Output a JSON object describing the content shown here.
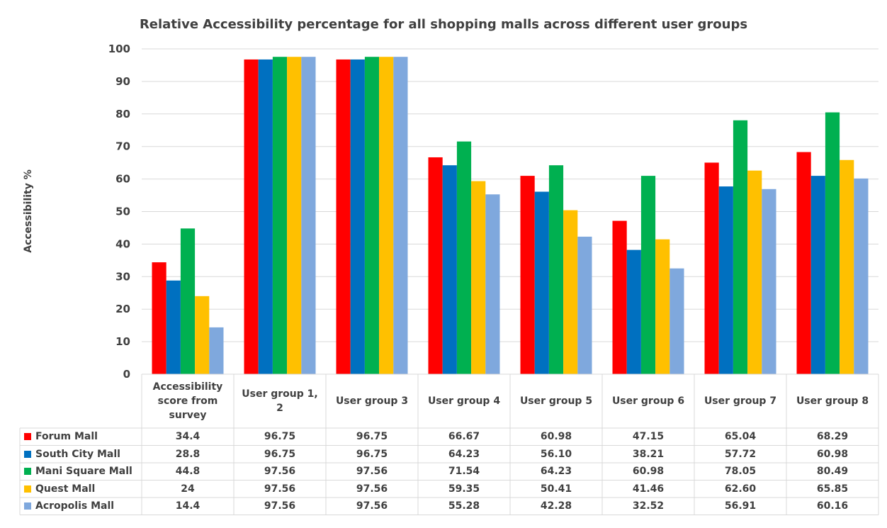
{
  "chart_data": {
    "type": "bar",
    "title": "Relative Accessibility percentage for all shopping malls across different user groups",
    "xlabel": "",
    "ylabel": "Accessibility %",
    "ylim": [
      0,
      100
    ],
    "yticks": [
      "0",
      "10",
      "20",
      "30",
      "40",
      "50",
      "60",
      "70",
      "80",
      "90",
      "100"
    ],
    "grid": true,
    "legend": "data-table",
    "categories": [
      "Accessibility score from survey",
      "User group 1, 2",
      "User group 3",
      "User group 4",
      "User group 5",
      "User group 6",
      "User group 7",
      "User group 8"
    ],
    "series": [
      {
        "name": "Forum Mall",
        "color": "#FF0000",
        "values": [
          34.4,
          96.75,
          96.75,
          66.67,
          60.98,
          47.15,
          65.04,
          68.29
        ],
        "labels": [
          "34.4",
          "96.75",
          "96.75",
          "66.67",
          "60.98",
          "47.15",
          "65.04",
          "68.29"
        ]
      },
      {
        "name": "South City Mall",
        "color": "#0070C0",
        "values": [
          28.8,
          96.75,
          96.75,
          64.23,
          56.1,
          38.21,
          57.72,
          60.98
        ],
        "labels": [
          "28.8",
          "96.75",
          "96.75",
          "64.23",
          "56.10",
          "38.21",
          "57.72",
          "60.98"
        ]
      },
      {
        "name": "Mani Square Mall",
        "color": "#00B050",
        "values": [
          44.8,
          97.56,
          97.56,
          71.54,
          64.23,
          60.98,
          78.05,
          80.49
        ],
        "labels": [
          "44.8",
          "97.56",
          "97.56",
          "71.54",
          "64.23",
          "60.98",
          "78.05",
          "80.49"
        ]
      },
      {
        "name": "Quest Mall",
        "color": "#FFC000",
        "values": [
          24,
          97.56,
          97.56,
          59.35,
          50.41,
          41.46,
          62.6,
          65.85
        ],
        "labels": [
          "24",
          "97.56",
          "97.56",
          "59.35",
          "50.41",
          "41.46",
          "62.60",
          "65.85"
        ]
      },
      {
        "name": "Acropolis Mall",
        "color": "#7FA8DD",
        "values": [
          14.4,
          97.56,
          97.56,
          55.28,
          42.28,
          32.52,
          56.91,
          60.16
        ],
        "labels": [
          "14.4",
          "97.56",
          "97.56",
          "55.28",
          "42.28",
          "32.52",
          "56.91",
          "60.16"
        ]
      }
    ]
  }
}
